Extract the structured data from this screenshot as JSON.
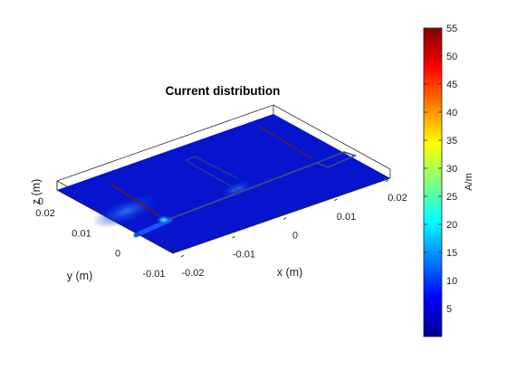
{
  "chart_data": {
    "type": "heatmap",
    "title": "Current distribution",
    "xlabel": "x (m)",
    "ylabel": "y (m)",
    "zlabel": "z (m)",
    "x_ticks": [
      "-0.02",
      "-0.01",
      "0",
      "0.01",
      "0.02"
    ],
    "y_ticks": [
      "-0.01",
      "0",
      "0.01",
      "0.02"
    ],
    "z_ticks": [
      "0"
    ],
    "colorbar": {
      "label": "A/m",
      "min": 0,
      "max": 55,
      "ticks": [
        "5",
        "10",
        "15",
        "20",
        "25",
        "30",
        "35",
        "40",
        "45",
        "50",
        "55"
      ],
      "colormap": "jet"
    },
    "surface_value_typical": 2,
    "hotspot_value": 22
  }
}
